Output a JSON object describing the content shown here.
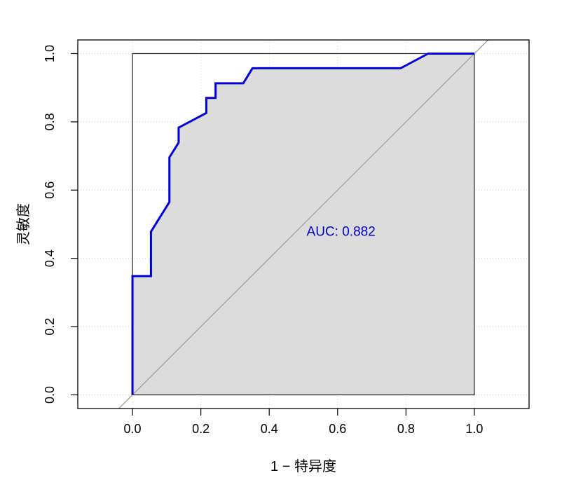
{
  "chart_data": {
    "type": "line",
    "title": "",
    "xlabel": "1 − 特异度",
    "ylabel": "灵敏度",
    "xlim": [
      -0.16,
      1.16
    ],
    "ylim": [
      -0.04,
      1.04
    ],
    "x_ticks": [
      0.0,
      0.2,
      0.4,
      0.6,
      0.8,
      1.0
    ],
    "y_ticks": [
      0.0,
      0.2,
      0.4,
      0.6,
      0.8,
      1.0
    ],
    "x_tick_labels": [
      "0.0",
      "0.2",
      "0.4",
      "0.6",
      "0.8",
      "1.0"
    ],
    "y_tick_labels": [
      "0.0",
      "0.2",
      "0.4",
      "0.6",
      "0.8",
      "1.0"
    ],
    "grid": true,
    "auc_fill": true,
    "reference_line": true,
    "annotation": {
      "text": "AUC: 0.882",
      "x": 0.61,
      "y": 0.48,
      "color": "#0000cc"
    },
    "colors": {
      "curve": "#0000dd",
      "fill": "#dcdcdc",
      "reference": "#a0a0a0",
      "grid": "#d3d3d3"
    },
    "series": [
      {
        "x": [
          0,
          0,
          0.054,
          0.054,
          0.108,
          0.108,
          0.135,
          0.135,
          0.216,
          0.216,
          0.243,
          0.243,
          0.324,
          0.351,
          0.784,
          0.865,
          1.0
        ],
        "y": [
          0,
          0.348,
          0.348,
          0.478,
          0.565,
          0.696,
          0.739,
          0.783,
          0.826,
          0.87,
          0.87,
          0.913,
          0.913,
          0.957,
          0.957,
          1.0,
          1.0
        ]
      }
    ]
  }
}
